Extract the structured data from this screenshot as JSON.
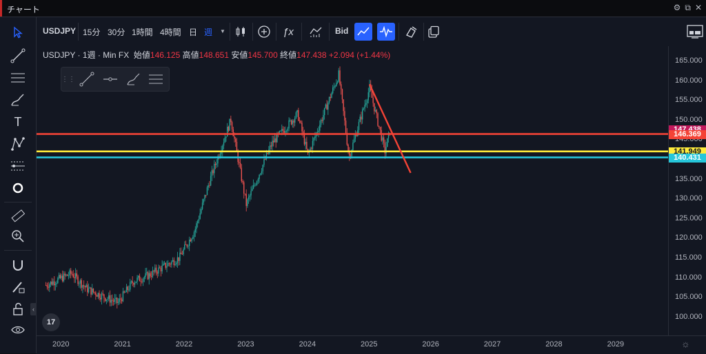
{
  "window": {
    "title": "チャート"
  },
  "toolbar": {
    "symbol": "USDJPY",
    "timeframes": [
      "15分",
      "30分",
      "1時間",
      "4時間",
      "日",
      "週"
    ],
    "active_timeframe": "週",
    "price_type": "Bid"
  },
  "legend": {
    "symbol": "USDJPY",
    "interval": "1週",
    "source": "Min FX",
    "open_label": "始値",
    "open": "146.125",
    "high_label": "高値",
    "high": "148.651",
    "low_label": "安値",
    "low": "145.700",
    "close_label": "終値",
    "close": "147.438",
    "change": "+2.094 (+1.44%)"
  },
  "price_axis": {
    "ticks": [
      "165.000",
      "160.000",
      "155.000",
      "150.000",
      "145.000",
      "140.000",
      "135.000",
      "130.000",
      "125.000",
      "120.000",
      "115.000",
      "110.000",
      "105.000",
      "100.000"
    ]
  },
  "price_labels": [
    {
      "value": "147.438",
      "color": "#c2185b"
    },
    {
      "value": "146.369",
      "color": "#f44336"
    },
    {
      "value": "141.949",
      "color": "#ffeb3b"
    },
    {
      "value": "140.431",
      "color": "#26c6da"
    }
  ],
  "time_axis": {
    "ticks": [
      "2020",
      "2021",
      "2022",
      "2023",
      "2024",
      "2025",
      "2026",
      "2027",
      "2028",
      "2029"
    ]
  },
  "tv_logo": "17",
  "chart_data": {
    "type": "candlestick",
    "symbol": "USDJPY",
    "interval": "1週",
    "ylim": [
      97,
      167
    ],
    "x_range": [
      "2019-09",
      "2029-12"
    ],
    "approx_weekly_close_path": [
      {
        "x": "2019-10",
        "y": 108
      },
      {
        "x": "2020-03",
        "y": 111
      },
      {
        "x": "2020-06",
        "y": 107
      },
      {
        "x": "2020-12",
        "y": 103.5
      },
      {
        "x": "2021-03",
        "y": 109
      },
      {
        "x": "2021-06",
        "y": 110.5
      },
      {
        "x": "2021-12",
        "y": 115
      },
      {
        "x": "2022-03",
        "y": 122
      },
      {
        "x": "2022-06",
        "y": 135
      },
      {
        "x": "2022-10",
        "y": 150
      },
      {
        "x": "2023-01",
        "y": 128.5
      },
      {
        "x": "2023-06",
        "y": 144
      },
      {
        "x": "2023-11",
        "y": 151.5
      },
      {
        "x": "2024-01",
        "y": 141
      },
      {
        "x": "2024-07",
        "y": 161.5
      },
      {
        "x": "2024-09",
        "y": 140.5
      },
      {
        "x": "2025-01",
        "y": 158
      },
      {
        "x": "2025-04",
        "y": 142
      },
      {
        "x": "2025-05",
        "y": 147.4
      }
    ],
    "horizontal_lines": [
      {
        "value": 146.369,
        "color": "#f44336"
      },
      {
        "value": 141.949,
        "color": "#ffeb3b"
      },
      {
        "value": 140.431,
        "color": "#26c6da"
      }
    ],
    "trend_line": {
      "from": {
        "x": "2025-01",
        "y": 159
      },
      "to": {
        "x": "2025-09",
        "y": 136.5
      },
      "color": "#f44336"
    },
    "last_price": 147.438
  }
}
